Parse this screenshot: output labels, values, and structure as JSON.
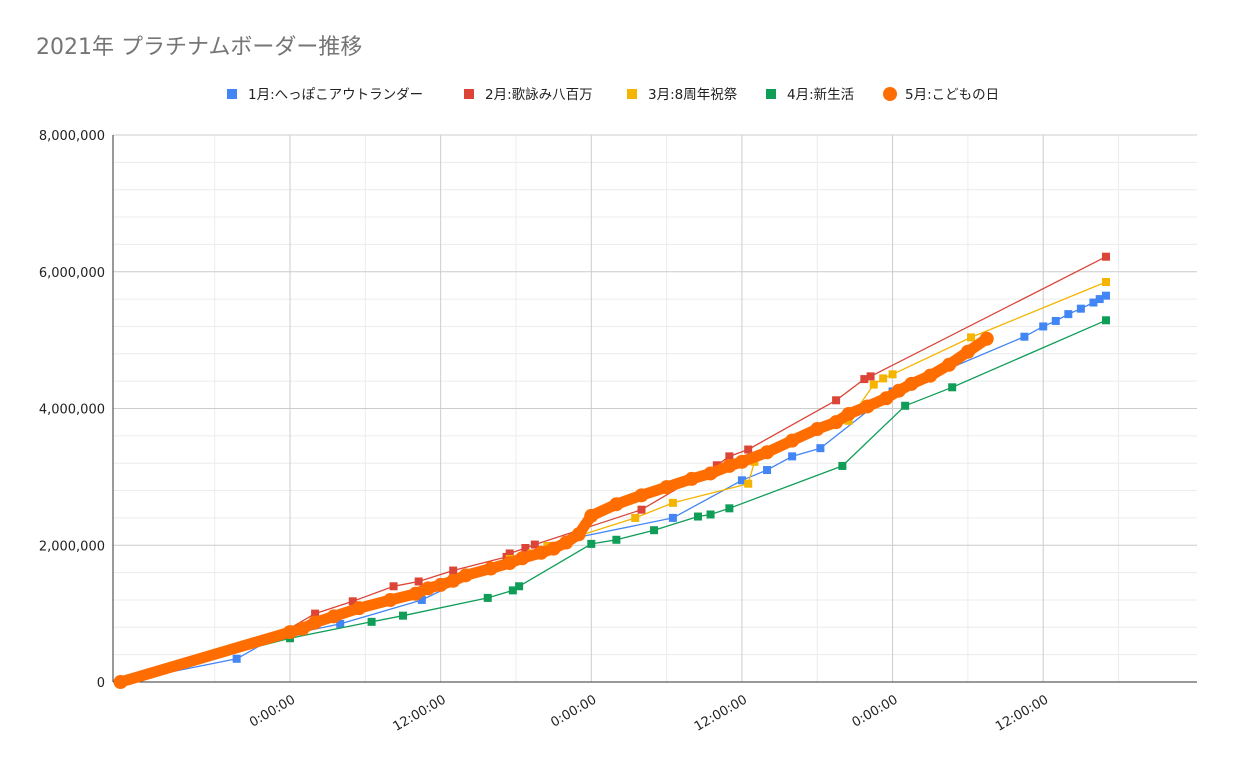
{
  "chart_data": {
    "type": "line",
    "title": "2021年 プラチナムボーダー推移",
    "xlabel": "",
    "ylabel": "",
    "x_unit": "hours",
    "xlim": [
      -28.2,
      144.5
    ],
    "x_ticks": [
      0,
      24,
      48,
      72,
      96,
      120
    ],
    "x_tick_labels": [
      "0:00:00",
      "12:00:00",
      "0:00:00",
      "12:00:00",
      "0:00:00",
      "12:00:00"
    ],
    "ylim": [
      0,
      8000000
    ],
    "y_ticks": [
      0,
      2000000,
      4000000,
      6000000,
      8000000
    ],
    "y_tick_labels": [
      "0",
      "2,000,000",
      "4,000,000",
      "6,000,000",
      "8,000,000"
    ],
    "grid": true,
    "legend_position": "top",
    "series": [
      {
        "name": "1月:へっぽこアウトランダー",
        "color": "#4285f4",
        "marker": "square",
        "points": [
          [
            -27,
            0
          ],
          [
            -8.5,
            340000
          ],
          [
            -2.5,
            650000
          ],
          [
            8,
            850000
          ],
          [
            21,
            1200000
          ],
          [
            35,
            1820000
          ],
          [
            45,
            2100000
          ],
          [
            61,
            2400000
          ],
          [
            72,
            2950000
          ],
          [
            76,
            3100000
          ],
          [
            80,
            3300000
          ],
          [
            84.5,
            3420000
          ],
          [
            96,
            4250000
          ],
          [
            101,
            4430000
          ],
          [
            117,
            5050000
          ],
          [
            120,
            5200000
          ],
          [
            122,
            5280000
          ],
          [
            124,
            5380000
          ],
          [
            126,
            5460000
          ],
          [
            128,
            5550000
          ],
          [
            129,
            5600000
          ],
          [
            130,
            5650000
          ]
        ]
      },
      {
        "name": "2月:歌詠み八百万",
        "color": "#db4437",
        "marker": "square",
        "points": [
          [
            -27,
            0
          ],
          [
            -2,
            680000
          ],
          [
            4,
            1000000
          ],
          [
            10,
            1180000
          ],
          [
            16.5,
            1400000
          ],
          [
            20.5,
            1470000
          ],
          [
            26,
            1630000
          ],
          [
            34.5,
            1830000
          ],
          [
            35,
            1880000
          ],
          [
            37.5,
            1960000
          ],
          [
            39,
            2010000
          ],
          [
            56,
            2520000
          ],
          [
            68,
            3170000
          ],
          [
            70,
            3300000
          ],
          [
            73,
            3400000
          ],
          [
            87,
            4120000
          ],
          [
            91.5,
            4430000
          ],
          [
            92.5,
            4470000
          ],
          [
            130,
            6220000
          ]
        ]
      },
      {
        "name": "3月:8周年祝祭",
        "color": "#f4b400",
        "marker": "square",
        "points": [
          [
            -27,
            0
          ],
          [
            1,
            770000
          ],
          [
            7,
            990000
          ],
          [
            20,
            1320000
          ],
          [
            26.5,
            1520000
          ],
          [
            35,
            1800000
          ],
          [
            38.5,
            1880000
          ],
          [
            41,
            1990000
          ],
          [
            55,
            2400000
          ],
          [
            61,
            2620000
          ],
          [
            73,
            2900000
          ],
          [
            74,
            3220000
          ],
          [
            89,
            3820000
          ],
          [
            93,
            4350000
          ],
          [
            94.5,
            4440000
          ],
          [
            96,
            4500000
          ],
          [
            108.5,
            5040000
          ],
          [
            130,
            5850000
          ]
        ]
      },
      {
        "name": "4月:新生活",
        "color": "#0f9d58",
        "marker": "square",
        "points": [
          [
            -27,
            0
          ],
          [
            0,
            640000
          ],
          [
            13,
            880000
          ],
          [
            18,
            970000
          ],
          [
            31.5,
            1230000
          ],
          [
            35.5,
            1340000
          ],
          [
            36.5,
            1400000
          ],
          [
            48,
            2020000
          ],
          [
            52,
            2080000
          ],
          [
            58,
            2220000
          ],
          [
            65,
            2420000
          ],
          [
            67,
            2450000
          ],
          [
            70,
            2540000
          ],
          [
            88,
            3160000
          ],
          [
            98,
            4040000
          ],
          [
            105.5,
            4310000
          ],
          [
            130,
            5290000
          ]
        ]
      },
      {
        "name": "5月:こどもの日",
        "color": "#ff6d01",
        "marker": "circle",
        "points": [
          [
            -27,
            0
          ],
          [
            0,
            730000
          ],
          [
            2,
            780000
          ],
          [
            4,
            870000
          ],
          [
            7,
            960000
          ],
          [
            11,
            1080000
          ],
          [
            16,
            1200000
          ],
          [
            20,
            1290000
          ],
          [
            22,
            1370000
          ],
          [
            24,
            1420000
          ],
          [
            26,
            1480000
          ],
          [
            28,
            1560000
          ],
          [
            32,
            1660000
          ],
          [
            35,
            1740000
          ],
          [
            37,
            1810000
          ],
          [
            40,
            1890000
          ],
          [
            42,
            1950000
          ],
          [
            44,
            2040000
          ],
          [
            46,
            2160000
          ],
          [
            48,
            2430000
          ],
          [
            52,
            2600000
          ],
          [
            56,
            2730000
          ],
          [
            60,
            2850000
          ],
          [
            64,
            2970000
          ],
          [
            67,
            3050000
          ],
          [
            70,
            3160000
          ],
          [
            72,
            3220000
          ],
          [
            76,
            3360000
          ],
          [
            80,
            3530000
          ],
          [
            84,
            3700000
          ],
          [
            87,
            3800000
          ],
          [
            89,
            3920000
          ],
          [
            92,
            4030000
          ],
          [
            95,
            4150000
          ],
          [
            97,
            4260000
          ],
          [
            99,
            4360000
          ],
          [
            102,
            4480000
          ],
          [
            105,
            4640000
          ],
          [
            108,
            4830000
          ],
          [
            111,
            5020000
          ]
        ]
      }
    ]
  }
}
